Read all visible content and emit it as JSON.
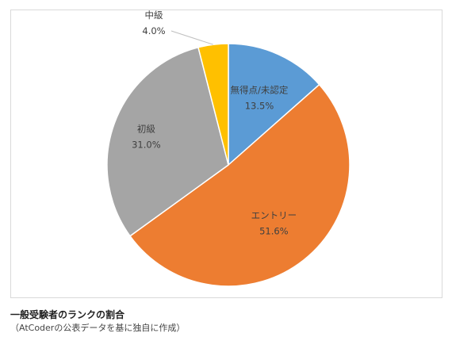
{
  "chart_data": {
    "type": "pie",
    "title": "",
    "slices": [
      {
        "label": "無得点/未認定",
        "value": 13.5,
        "value_text": "13.5%",
        "color": "#5b9bd5"
      },
      {
        "label": "エントリー",
        "value": 51.6,
        "value_text": "51.6%",
        "color": "#ed7d31"
      },
      {
        "label": "初級",
        "value": 31.0,
        "value_text": "31.0%",
        "color": "#a5a5a5"
      },
      {
        "label": "中級",
        "value": 4.0,
        "value_text": "4.0%",
        "color": "#ffc000"
      }
    ],
    "start_angle": "12 o'clock",
    "direction": "clockwise",
    "legend": "none"
  },
  "caption": {
    "title": "一般受験者のランクの割合",
    "subtitle": "（AtCoderの公表データを基に独自に作成）"
  }
}
